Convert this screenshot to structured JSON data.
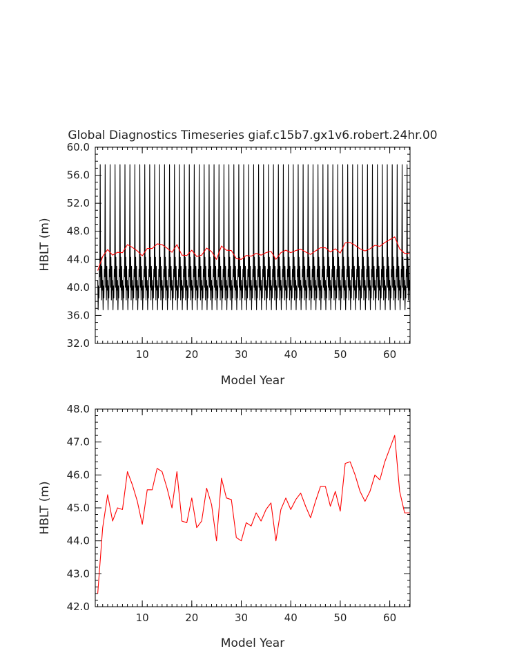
{
  "chart_data": [
    {
      "type": "line",
      "title": "Global Diagnostics Timeseries giaf.c15b7.gx1v6.robert.24hr.00",
      "xlabel": "Model Year",
      "ylabel": "HBLT (m)",
      "xlim": [
        0.5,
        64.1
      ],
      "ylim": [
        32.0,
        60.0
      ],
      "xticks": [
        10,
        20,
        30,
        40,
        50,
        60
      ],
      "xtick_labels": [
        "10",
        "20",
        "30",
        "40",
        "50",
        "60"
      ],
      "yticks": [
        32,
        36,
        40,
        44,
        48,
        52,
        56,
        60
      ],
      "ytick_labels": [
        "32.0",
        "36.0",
        "40.0",
        "44.0",
        "48.0",
        "52.0",
        "56.0",
        "60.0"
      ],
      "grid": false,
      "monthly_pattern": {
        "months_per_year": 12,
        "description": "monthly values, same seasonal cycle each year; yearly value = annual mean",
        "pattern": [
          41.0,
          36.8,
          40.2,
          38.5,
          42.6,
          41.5,
          57.5,
          40.0,
          44.3,
          38.2,
          43.0,
          39.6
        ]
      },
      "series": [
        {
          "color": "#000000",
          "generated_from": "monthly_pattern"
        },
        {
          "color": "#ff0000",
          "x": [
            1,
            2,
            3,
            4,
            5,
            6,
            7,
            8,
            9,
            10,
            11,
            12,
            13,
            14,
            15,
            16,
            17,
            18,
            19,
            20,
            21,
            22,
            23,
            24,
            25,
            26,
            27,
            28,
            29,
            30,
            31,
            32,
            33,
            34,
            35,
            36,
            37,
            38,
            39,
            40,
            41,
            42,
            43,
            44,
            45,
            46,
            47,
            48,
            49,
            50,
            51,
            52,
            53,
            54,
            55,
            56,
            57,
            58,
            59,
            60,
            61,
            62,
            63,
            64
          ],
          "values": [
            42.4,
            44.4,
            45.4,
            44.6,
            45.0,
            44.95,
            46.1,
            45.7,
            45.2,
            44.5,
            45.55,
            45.55,
            46.2,
            46.1,
            45.6,
            45.0,
            46.1,
            44.6,
            44.55,
            45.3,
            44.4,
            44.6,
            45.6,
            45.1,
            44.0,
            45.9,
            45.3,
            45.25,
            44.1,
            44.0,
            44.55,
            44.45,
            44.85,
            44.6,
            44.95,
            45.15,
            44.0,
            44.95,
            45.3,
            44.95,
            45.25,
            45.45,
            45.05,
            44.7,
            45.2,
            45.65,
            45.65,
            45.05,
            45.5,
            44.9,
            46.35,
            46.4,
            46.0,
            45.5,
            45.2,
            45.5,
            46.0,
            45.85,
            46.4,
            46.8,
            47.2,
            45.5,
            44.85,
            44.85
          ]
        }
      ]
    },
    {
      "type": "line",
      "title": "",
      "xlabel": "Model Year",
      "ylabel": "HBLT (m)",
      "xlim": [
        0.5,
        64.1
      ],
      "ylim": [
        42.0,
        48.0
      ],
      "xticks": [
        10,
        20,
        30,
        40,
        50,
        60
      ],
      "xtick_labels": [
        "10",
        "20",
        "30",
        "40",
        "50",
        "60"
      ],
      "yticks": [
        42,
        43,
        44,
        45,
        46,
        47,
        48
      ],
      "ytick_labels": [
        "42.0",
        "43.0",
        "44.0",
        "45.0",
        "46.0",
        "47.0",
        "48.0"
      ],
      "grid": false,
      "series": [
        {
          "color": "#ff0000",
          "x": [
            1,
            2,
            3,
            4,
            5,
            6,
            7,
            8,
            9,
            10,
            11,
            12,
            13,
            14,
            15,
            16,
            17,
            18,
            19,
            20,
            21,
            22,
            23,
            24,
            25,
            26,
            27,
            28,
            29,
            30,
            31,
            32,
            33,
            34,
            35,
            36,
            37,
            38,
            39,
            40,
            41,
            42,
            43,
            44,
            45,
            46,
            47,
            48,
            49,
            50,
            51,
            52,
            53,
            54,
            55,
            56,
            57,
            58,
            59,
            60,
            61,
            62,
            63,
            64
          ],
          "values": [
            42.4,
            44.4,
            45.4,
            44.6,
            45.0,
            44.95,
            46.1,
            45.7,
            45.2,
            44.5,
            45.55,
            45.55,
            46.2,
            46.1,
            45.6,
            45.0,
            46.1,
            44.6,
            44.55,
            45.3,
            44.4,
            44.6,
            45.6,
            45.1,
            44.0,
            45.9,
            45.3,
            45.25,
            44.1,
            44.0,
            44.55,
            44.45,
            44.85,
            44.6,
            44.95,
            45.15,
            44.0,
            44.95,
            45.3,
            44.95,
            45.25,
            45.45,
            45.05,
            44.7,
            45.2,
            45.65,
            45.65,
            45.05,
            45.5,
            44.9,
            46.35,
            46.4,
            46.0,
            45.5,
            45.2,
            45.5,
            46.0,
            45.85,
            46.4,
            46.8,
            47.2,
            45.5,
            44.85,
            44.85
          ]
        }
      ]
    }
  ]
}
